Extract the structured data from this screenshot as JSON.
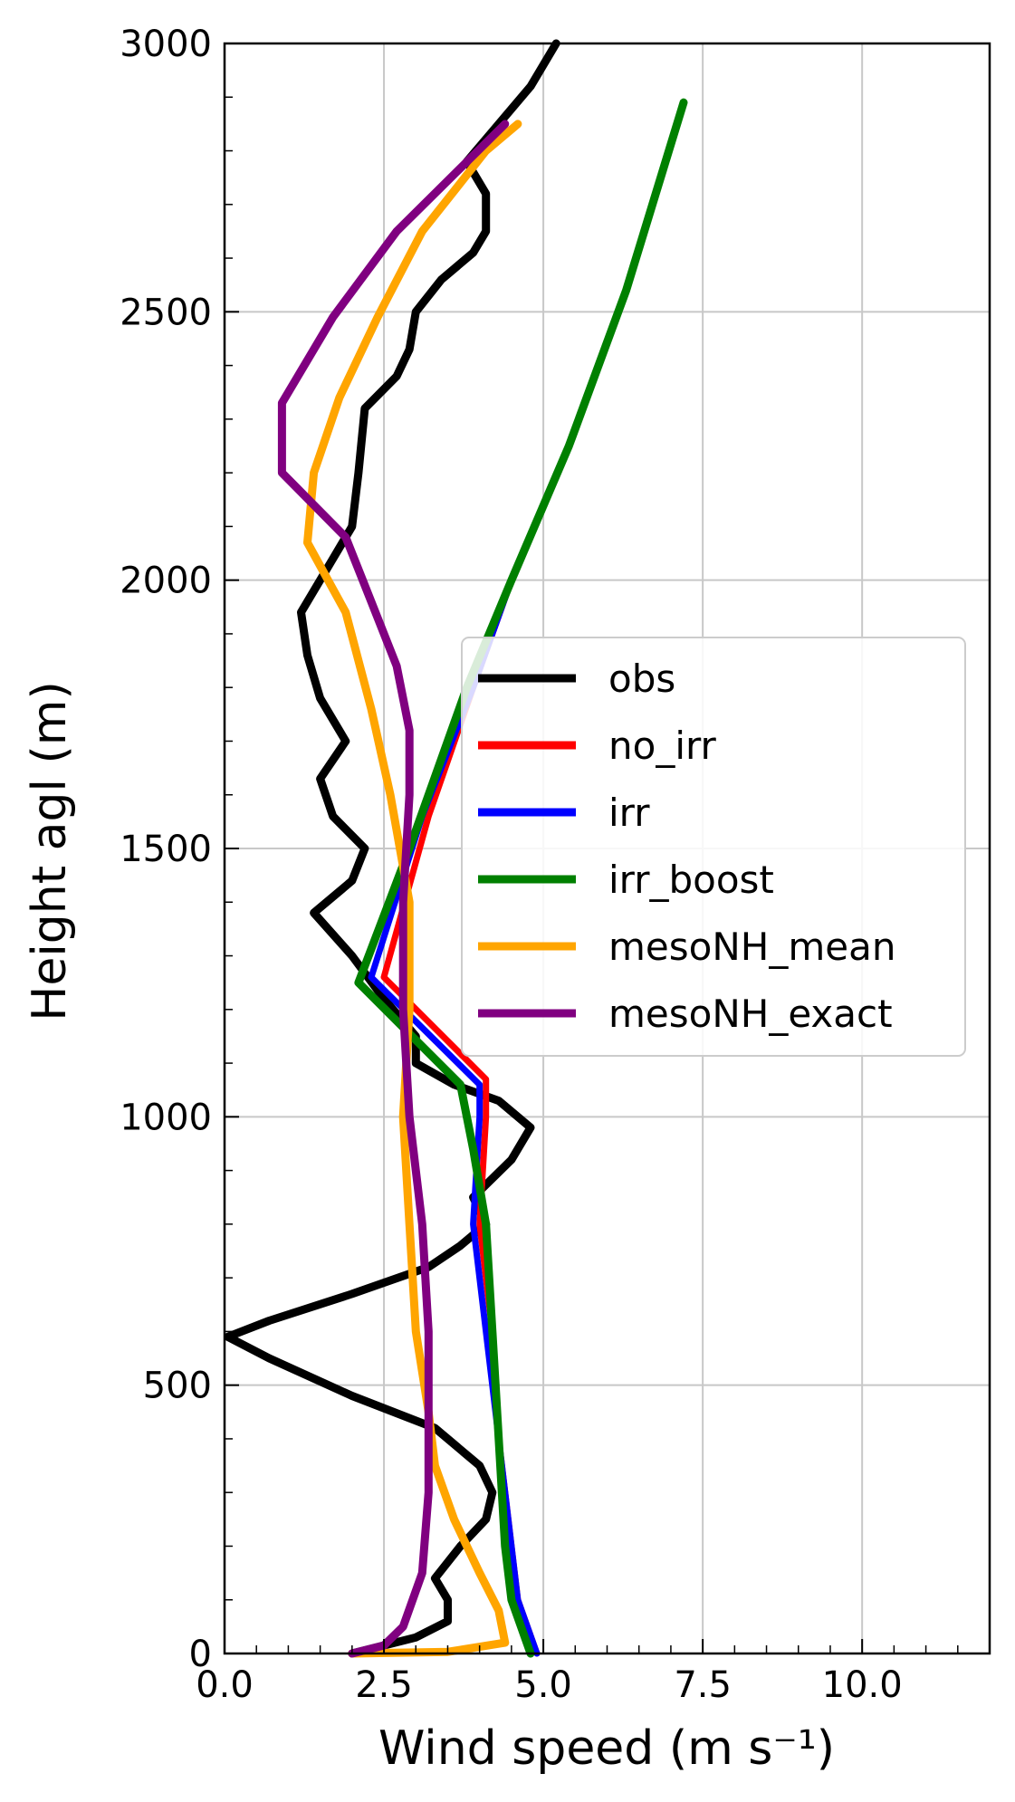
{
  "chart_data": {
    "type": "line",
    "xlabel": "Wind speed (m s⁻¹)",
    "ylabel": "Height agl (m)",
    "xlim": [
      0,
      12
    ],
    "ylim": [
      0,
      3000
    ],
    "x_ticks": [
      "0.0",
      "2.5",
      "5.0",
      "7.5",
      "10.0"
    ],
    "y_ticks": [
      "0",
      "500",
      "1000",
      "1500",
      "2000",
      "2500",
      "3000"
    ],
    "grid": true,
    "legend_position": "center-right",
    "series": [
      {
        "name": "obs",
        "color": "#000000",
        "points": [
          [
            2.0,
            0
          ],
          [
            3.0,
            30
          ],
          [
            3.5,
            60
          ],
          [
            3.5,
            100
          ],
          [
            3.3,
            140
          ],
          [
            3.7,
            200
          ],
          [
            4.1,
            250
          ],
          [
            4.2,
            300
          ],
          [
            4.0,
            350
          ],
          [
            3.3,
            420
          ],
          [
            2.0,
            480
          ],
          [
            0.7,
            550
          ],
          [
            0.05,
            590
          ],
          [
            0.7,
            620
          ],
          [
            2.0,
            670
          ],
          [
            3.2,
            720
          ],
          [
            3.7,
            760
          ],
          [
            4.1,
            800
          ],
          [
            3.9,
            850
          ],
          [
            4.5,
            920
          ],
          [
            4.8,
            980
          ],
          [
            4.3,
            1030
          ],
          [
            3.6,
            1060
          ],
          [
            3.0,
            1100
          ],
          [
            3.0,
            1150
          ],
          [
            2.5,
            1220
          ],
          [
            2.0,
            1300
          ],
          [
            1.4,
            1380
          ],
          [
            2.0,
            1440
          ],
          [
            2.2,
            1500
          ],
          [
            1.7,
            1560
          ],
          [
            1.5,
            1630
          ],
          [
            1.9,
            1700
          ],
          [
            1.5,
            1780
          ],
          [
            1.3,
            1860
          ],
          [
            1.2,
            1940
          ],
          [
            1.7,
            2040
          ],
          [
            2.0,
            2100
          ],
          [
            2.1,
            2200
          ],
          [
            2.2,
            2320
          ],
          [
            2.7,
            2380
          ],
          [
            2.9,
            2430
          ],
          [
            3.0,
            2500
          ],
          [
            3.4,
            2560
          ],
          [
            3.9,
            2610
          ],
          [
            4.1,
            2650
          ],
          [
            4.1,
            2720
          ],
          [
            3.8,
            2780
          ],
          [
            4.3,
            2850
          ],
          [
            4.8,
            2920
          ],
          [
            5.2,
            3000
          ]
        ]
      },
      {
        "name": "no_irr",
        "color": "#ff0000",
        "points": [
          [
            4.9,
            0
          ],
          [
            4.6,
            100
          ],
          [
            4.5,
            200
          ],
          [
            4.3,
            400
          ],
          [
            4.2,
            600
          ],
          [
            4.0,
            800
          ],
          [
            4.1,
            1000
          ],
          [
            4.1,
            1070
          ],
          [
            2.5,
            1260
          ],
          [
            3.2,
            1560
          ],
          [
            3.9,
            1800
          ],
          [
            4.5,
            2000
          ],
          [
            5.4,
            2250
          ],
          [
            6.3,
            2540
          ],
          [
            7.2,
            2890
          ]
        ]
      },
      {
        "name": "irr",
        "color": "#0000ff",
        "points": [
          [
            4.9,
            0
          ],
          [
            4.6,
            100
          ],
          [
            4.5,
            200
          ],
          [
            4.3,
            400
          ],
          [
            4.1,
            600
          ],
          [
            3.9,
            800
          ],
          [
            4.0,
            1000
          ],
          [
            4.0,
            1060
          ],
          [
            2.3,
            1260
          ],
          [
            3.1,
            1560
          ],
          [
            3.9,
            1800
          ],
          [
            4.5,
            2000
          ],
          [
            5.4,
            2250
          ],
          [
            6.3,
            2540
          ],
          [
            7.2,
            2890
          ]
        ]
      },
      {
        "name": "irr_boost",
        "color": "#008000",
        "points": [
          [
            4.8,
            0
          ],
          [
            4.5,
            100
          ],
          [
            4.4,
            200
          ],
          [
            4.3,
            400
          ],
          [
            4.2,
            600
          ],
          [
            4.1,
            800
          ],
          [
            3.9,
            940
          ],
          [
            3.7,
            1060
          ],
          [
            2.1,
            1250
          ],
          [
            2.9,
            1500
          ],
          [
            3.8,
            1800
          ],
          [
            4.5,
            2000
          ],
          [
            5.4,
            2250
          ],
          [
            6.3,
            2540
          ],
          [
            7.2,
            2890
          ]
        ]
      },
      {
        "name": "mesoNH_mean",
        "color": "#ffa500",
        "points": [
          [
            2.0,
            0
          ],
          [
            3.5,
            3
          ],
          [
            4.4,
            20
          ],
          [
            4.3,
            80
          ],
          [
            4.0,
            150
          ],
          [
            3.6,
            250
          ],
          [
            3.3,
            350
          ],
          [
            3.2,
            450
          ],
          [
            3.0,
            600
          ],
          [
            2.9,
            800
          ],
          [
            2.8,
            1000
          ],
          [
            2.9,
            1200
          ],
          [
            2.9,
            1400
          ],
          [
            2.6,
            1600
          ],
          [
            2.3,
            1760
          ],
          [
            1.9,
            1940
          ],
          [
            1.3,
            2070
          ],
          [
            1.4,
            2200
          ],
          [
            1.8,
            2340
          ],
          [
            2.4,
            2490
          ],
          [
            3.1,
            2650
          ],
          [
            4.1,
            2800
          ],
          [
            4.6,
            2850
          ]
        ]
      },
      {
        "name": "mesoNH_exact",
        "color": "#800080",
        "points": [
          [
            2.0,
            0
          ],
          [
            2.5,
            15
          ],
          [
            2.8,
            50
          ],
          [
            3.1,
            150
          ],
          [
            3.2,
            300
          ],
          [
            3.2,
            450
          ],
          [
            3.2,
            600
          ],
          [
            3.1,
            800
          ],
          [
            2.9,
            1000
          ],
          [
            2.8,
            1200
          ],
          [
            2.8,
            1400
          ],
          [
            2.9,
            1600
          ],
          [
            2.9,
            1720
          ],
          [
            2.7,
            1840
          ],
          [
            2.3,
            1960
          ],
          [
            1.9,
            2080
          ],
          [
            0.9,
            2200
          ],
          [
            0.9,
            2330
          ],
          [
            1.7,
            2490
          ],
          [
            2.7,
            2650
          ],
          [
            4.4,
            2850
          ]
        ]
      }
    ]
  }
}
